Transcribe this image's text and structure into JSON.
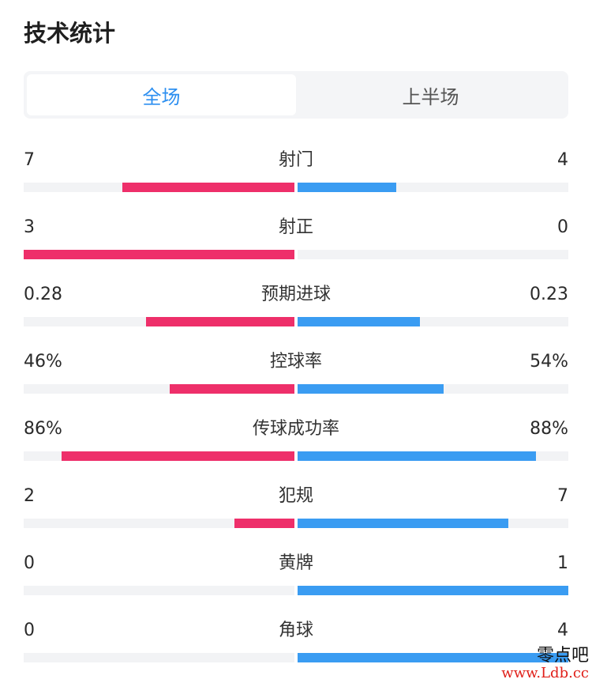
{
  "title": "技术统计",
  "tabs": [
    {
      "label": "全场",
      "active": true
    },
    {
      "label": "上半场",
      "active": false
    }
  ],
  "colors": {
    "home": "#ee2f6a",
    "away": "#3a9cf2",
    "tab_active": "#2d8ff0",
    "tab_inactive": "#555555"
  },
  "stats": [
    {
      "label": "射门",
      "home": "7",
      "away": "4",
      "home_share": 0.636,
      "away_share": 0.364
    },
    {
      "label": "射正",
      "home": "3",
      "away": "0",
      "home_share": 1.0,
      "away_share": 0.0
    },
    {
      "label": "预期进球",
      "home": "0.28",
      "away": "0.23",
      "home_share": 0.549,
      "away_share": 0.451
    },
    {
      "label": "控球率",
      "home": "46%",
      "away": "54%",
      "home_share": 0.46,
      "away_share": 0.54
    },
    {
      "label": "传球成功率",
      "home": "86%",
      "away": "88%",
      "home_share": 0.86,
      "away_share": 0.88
    },
    {
      "label": "犯规",
      "home": "2",
      "away": "7",
      "home_share": 0.222,
      "away_share": 0.778
    },
    {
      "label": "黄牌",
      "home": "0",
      "away": "1",
      "home_share": 0.0,
      "away_share": 1.0
    },
    {
      "label": "角球",
      "home": "0",
      "away": "4",
      "home_share": 0.0,
      "away_share": 1.0
    }
  ],
  "watermark": {
    "line1": "零点吧",
    "line2": "www.Ldb.cc"
  }
}
